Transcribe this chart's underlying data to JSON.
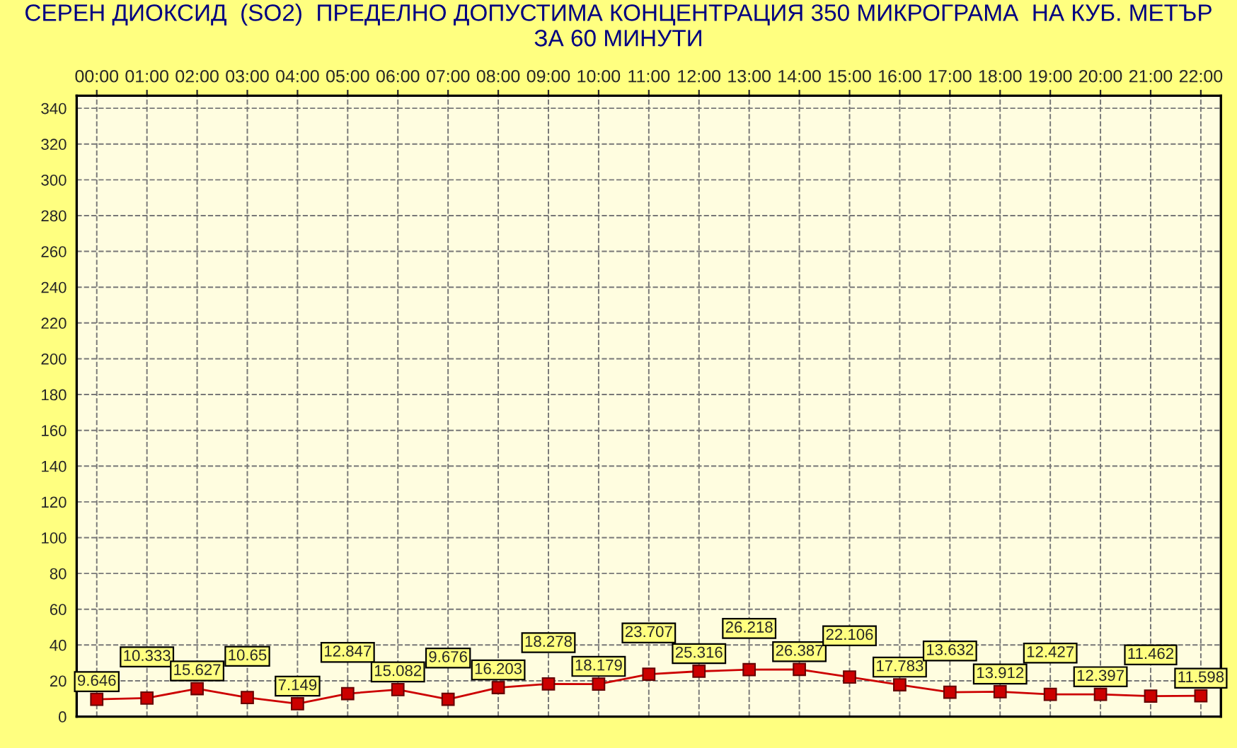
{
  "chart_data": {
    "type": "line",
    "title": "СЕРЕН ДИОКСИД  (SO2)  ПРЕДЕЛНО ДОПУСТИМА КОНЦЕНТРАЦИЯ 350 МИКРОГРАМА  НА КУБ. МЕТЪР\nЗА 60 МИНУТИ",
    "categories": [
      "00:00",
      "01:00",
      "02:00",
      "03:00",
      "04:00",
      "05:00",
      "06:00",
      "07:00",
      "08:00",
      "09:00",
      "10:00",
      "11:00",
      "12:00",
      "13:00",
      "14:00",
      "15:00",
      "16:00",
      "17:00",
      "18:00",
      "19:00",
      "20:00",
      "21:00",
      "22:00"
    ],
    "series": [
      {
        "color": "#cc0000",
        "values": [
          9.646,
          10.333,
          15.627,
          10.65,
          7.149,
          12.847,
          15.082,
          9.676,
          16.203,
          18.278,
          18.179,
          23.707,
          25.316,
          26.218,
          26.387,
          22.106,
          17.783,
          13.632,
          13.912,
          12.427,
          12.397,
          11.462,
          11.598
        ]
      }
    ],
    "ylim": [
      0,
      347
    ],
    "yticks": [
      0,
      20,
      40,
      60,
      80,
      100,
      120,
      140,
      160,
      180,
      200,
      220,
      240,
      260,
      280,
      300,
      320,
      340
    ],
    "grid": true,
    "legend": false,
    "marker": "square",
    "line_style": "solid",
    "data_labels": true
  }
}
